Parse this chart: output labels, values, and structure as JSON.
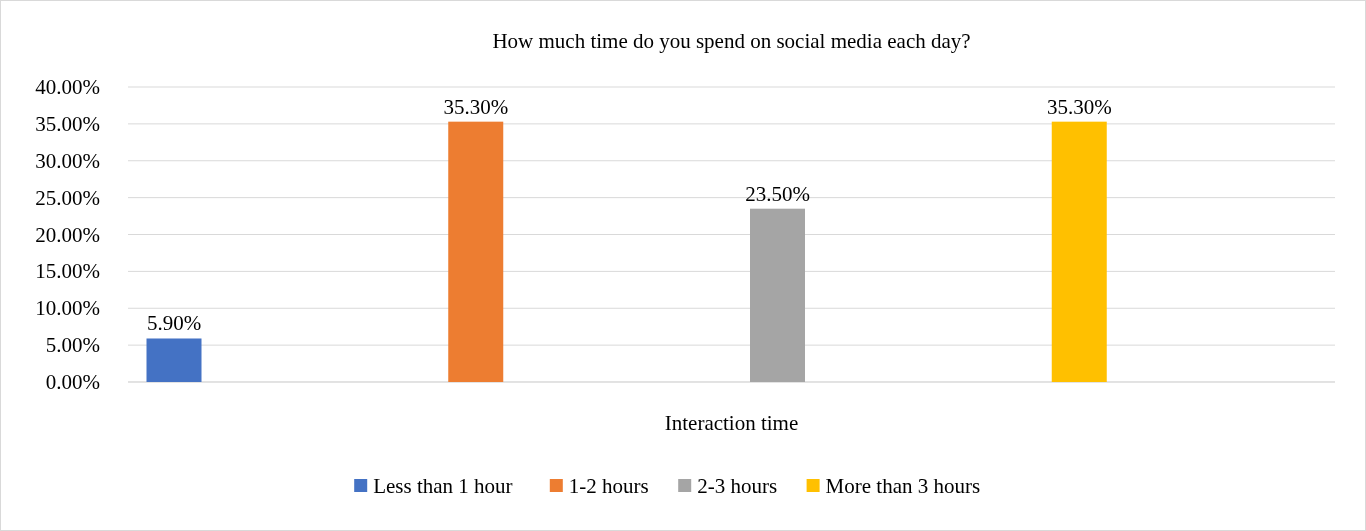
{
  "chart_data": {
    "type": "bar",
    "title": "How much time do you spend on social media each day?",
    "xlabel": "Interaction time",
    "categories": [
      null
    ],
    "series": [
      {
        "name": "Less than 1 hour",
        "color": "#4472c4",
        "values": [
          5.9
        ],
        "value_labels": [
          "5.90%"
        ]
      },
      {
        "name": "1-2 hours",
        "color": "#ed7d31",
        "values": [
          35.3
        ],
        "value_labels": [
          "35.30%"
        ]
      },
      {
        "name": "2-3 hours",
        "color": "#a5a5a5",
        "values": [
          23.5
        ],
        "value_labels": [
          "23.50%"
        ]
      },
      {
        "name": "More than 3 hours",
        "color": "#ffc000",
        "values": [
          35.3
        ],
        "value_labels": [
          "35.30%"
        ]
      }
    ],
    "ylim": [
      0,
      40
    ],
    "yticks": [
      {
        "value": 0,
        "label": "0.00%"
      },
      {
        "value": 5,
        "label": "5.00%"
      },
      {
        "value": 10,
        "label": "10.00%"
      },
      {
        "value": 15,
        "label": "15.00%"
      },
      {
        "value": 20,
        "label": "20.00%"
      },
      {
        "value": 25,
        "label": "25.00%"
      },
      {
        "value": 30,
        "label": "30.00%"
      },
      {
        "value": 35,
        "label": "35.00%"
      },
      {
        "value": 40,
        "label": "40.00%"
      }
    ],
    "grid": "y",
    "legend": "bottom"
  }
}
